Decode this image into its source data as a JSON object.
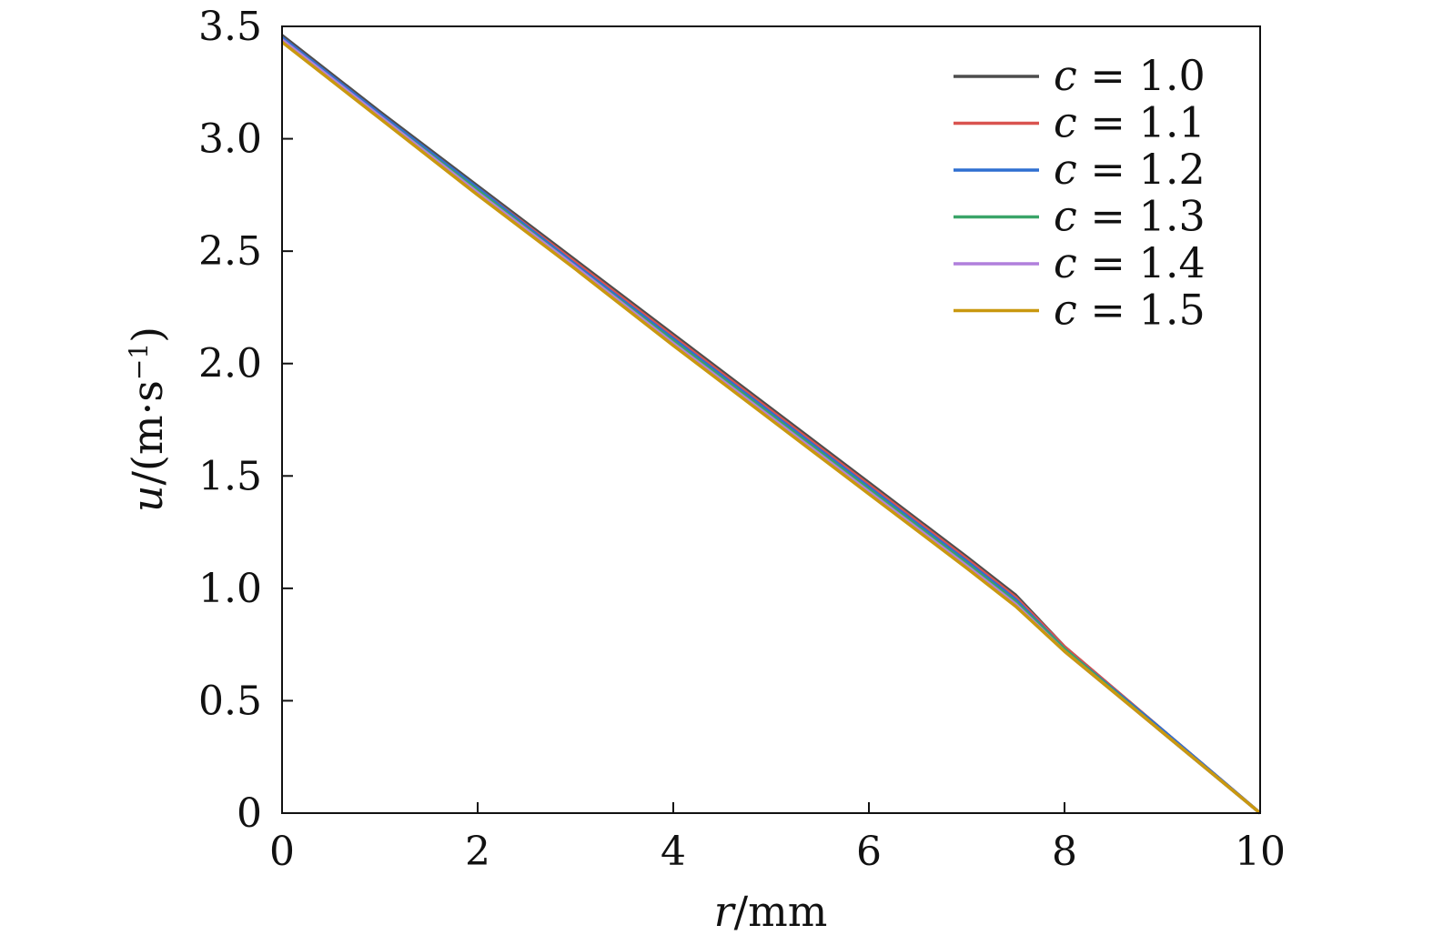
{
  "chart_data": {
    "type": "line",
    "xlabel": {
      "var": "r",
      "unit": "/mm"
    },
    "ylabel": {
      "var": "u",
      "unit": "/(m·s",
      "sup": "−1",
      "close": ")"
    },
    "xlim": [
      0,
      10
    ],
    "ylim": [
      0,
      3.5
    ],
    "x_ticks": [
      0,
      2,
      4,
      6,
      8,
      10
    ],
    "x_tick_labels": [
      "0",
      "2",
      "4",
      "6",
      "8",
      "10"
    ],
    "y_ticks": [
      0,
      0.5,
      1.0,
      1.5,
      2.0,
      2.5,
      3.0,
      3.5
    ],
    "y_tick_labels": [
      "0",
      "0.5",
      "1.0",
      "1.5",
      "2.0",
      "2.5",
      "3.0",
      "3.5"
    ],
    "grid": false,
    "legend_position": "top-right",
    "x": [
      0,
      1,
      2,
      3,
      4,
      5,
      6,
      7,
      7.5,
      8,
      9,
      10
    ],
    "series": [
      {
        "name": "c = 1.0",
        "var": "c",
        "eq": "= 1.0",
        "color": "#4d4d4d",
        "values": [
          3.46,
          3.12,
          2.79,
          2.46,
          2.13,
          1.8,
          1.47,
          1.14,
          0.97,
          0.74,
          0.37,
          0.0
        ]
      },
      {
        "name": "c = 1.1",
        "var": "c",
        "eq": "= 1.1",
        "color": "#d9534f",
        "values": [
          3.45,
          3.11,
          2.78,
          2.45,
          2.12,
          1.79,
          1.46,
          1.13,
          0.96,
          0.74,
          0.37,
          0.0
        ]
      },
      {
        "name": "c = 1.2",
        "var": "c",
        "eq": "= 1.2",
        "color": "#2f6fd0",
        "values": [
          3.45,
          3.11,
          2.78,
          2.44,
          2.11,
          1.78,
          1.45,
          1.12,
          0.95,
          0.73,
          0.37,
          0.0
        ]
      },
      {
        "name": "c = 1.3",
        "var": "c",
        "eq": "= 1.3",
        "color": "#3aa468",
        "values": [
          3.44,
          3.1,
          2.77,
          2.43,
          2.1,
          1.77,
          1.44,
          1.11,
          0.94,
          0.73,
          0.36,
          0.0
        ]
      },
      {
        "name": "c = 1.4",
        "var": "c",
        "eq": "= 1.4",
        "color": "#b07fdc",
        "values": [
          3.44,
          3.1,
          2.76,
          2.43,
          2.09,
          1.76,
          1.43,
          1.1,
          0.93,
          0.72,
          0.36,
          0.0
        ]
      },
      {
        "name": "c = 1.5",
        "var": "c",
        "eq": "= 1.5",
        "color": "#c9980f",
        "values": [
          3.43,
          3.09,
          2.75,
          2.42,
          2.08,
          1.75,
          1.42,
          1.09,
          0.92,
          0.72,
          0.36,
          0.0
        ]
      }
    ]
  }
}
